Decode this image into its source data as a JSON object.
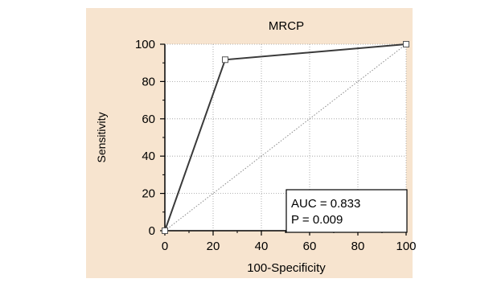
{
  "colors": {
    "page_background": "#ffffff",
    "panel_background": "#f7e4cf",
    "plot_background": "#ffffff",
    "grid": "#9a9a9a",
    "curve": "#3a3a3a",
    "diagonal": "#8a8a8a",
    "marker_fill": "#ffffff",
    "marker_stroke": "#555555"
  },
  "chart_data": {
    "type": "line",
    "title": "MRCP",
    "xlabel": "100-Specificity",
    "ylabel": "Sensitivity",
    "xlim": [
      0,
      100
    ],
    "ylim": [
      0,
      100
    ],
    "xticks": [
      "0",
      "20",
      "40",
      "60",
      "80",
      "100"
    ],
    "yticks": [
      "0",
      "20",
      "40",
      "60",
      "80",
      "100"
    ],
    "grid": true,
    "series": [
      {
        "x": [
          0,
          25,
          100
        ],
        "y": [
          0,
          91.7,
          100
        ],
        "markers": "square"
      }
    ],
    "reference_line": {
      "x": [
        0,
        100
      ],
      "y": [
        0,
        100
      ],
      "style": "dotted"
    },
    "annotation": {
      "lines": [
        "AUC = 0.833",
        "P = 0.009"
      ],
      "placement": "bottom-right"
    }
  }
}
